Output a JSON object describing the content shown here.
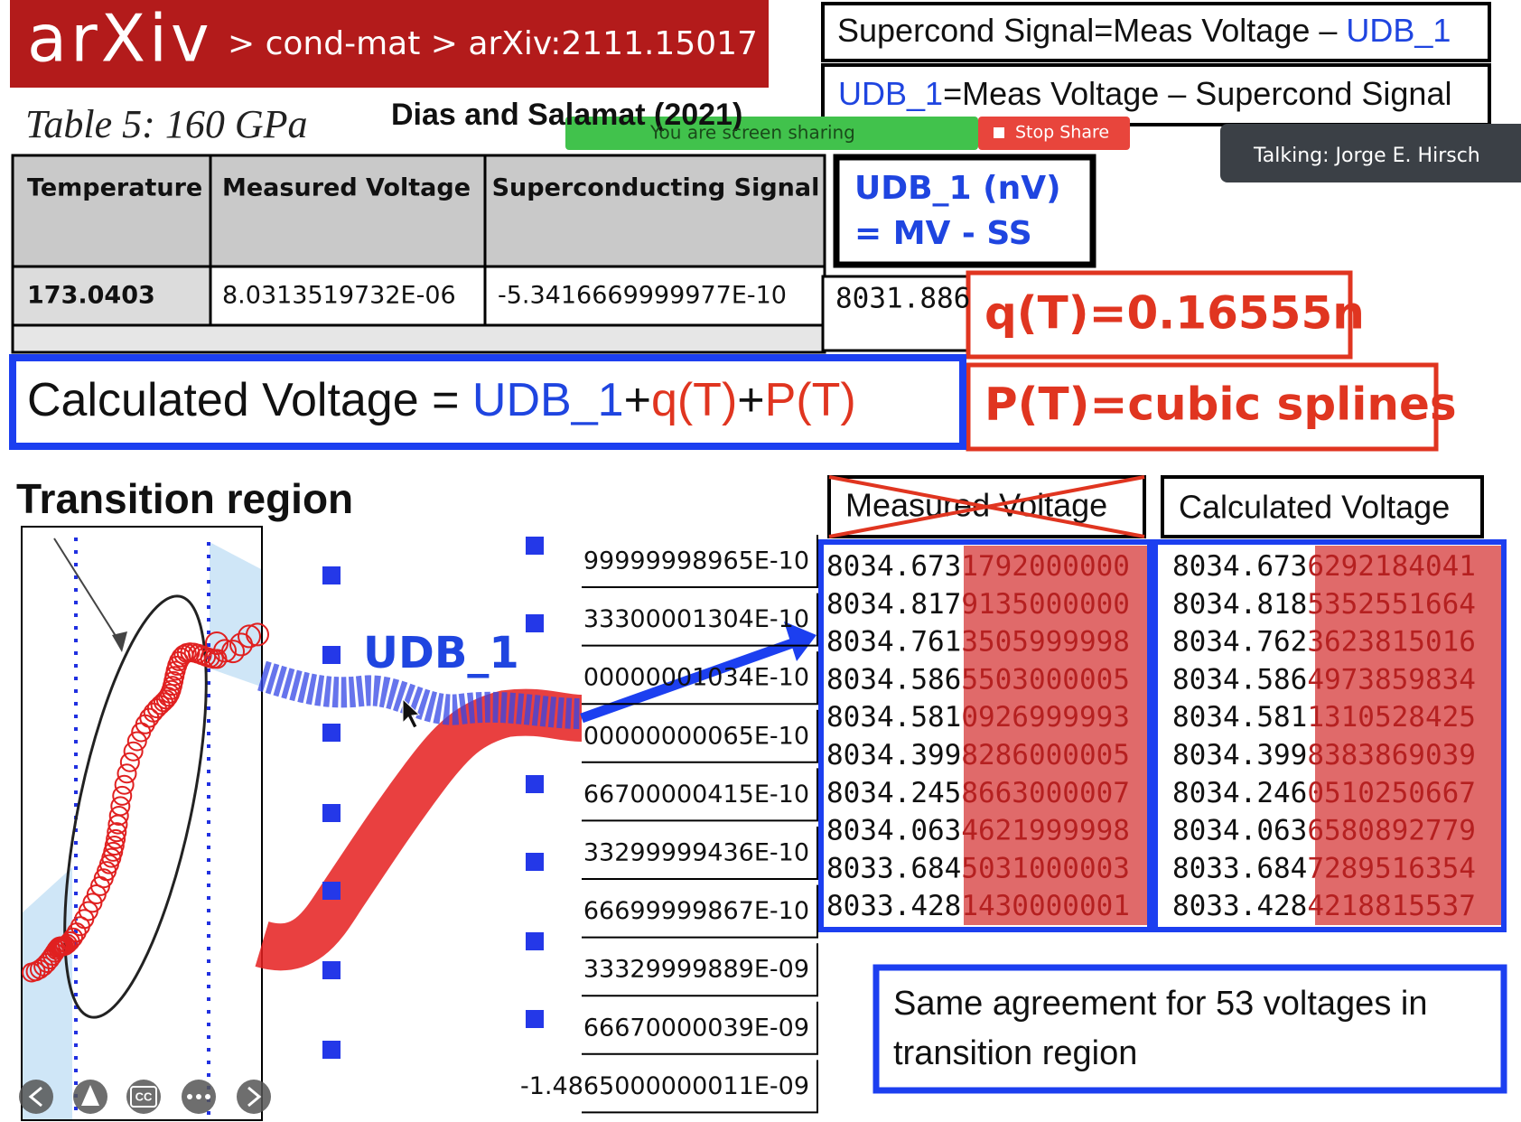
{
  "header": {
    "logo": "arXiv",
    "breadcrumb": "> cond-mat > arXiv:2111.15017"
  },
  "caption": {
    "table": "Table 5: 160 GPa",
    "authors": "Dias and Salamat (2021)"
  },
  "screen_share": {
    "status": "You are screen sharing",
    "stop": "Stop Share"
  },
  "speaker": "Talking: Jorge E. Hirsch",
  "definitions": [
    {
      "text": "Supercond Signal=Meas Voltage – ",
      "term": "UDB_1"
    },
    {
      "term": "UDB_1",
      "text": "=Meas Voltage – Supercond Signal"
    }
  ],
  "table": {
    "headers": [
      "Temperature",
      "Measured Voltage",
      "Superconducting Signal"
    ],
    "rows": [
      [
        "173.0403",
        "8.0313519732E-06",
        "-5.3416669999977E-10"
      ]
    ]
  },
  "udb": {
    "title": "UDB_1 (nV)",
    "formula": "= MV - SS",
    "first_value": "8031.886"
  },
  "q": "q(T)=0.16555n",
  "p": "P(T)=cubic splines",
  "calculated_formula": {
    "label": "Calculated Voltage = ",
    "udb": "UDB_1",
    "plus1": "+",
    "q": "q(T)",
    "plus2": "+",
    "p": "P(T)"
  },
  "section": "Transition region",
  "plot_label": "UDB_1",
  "signal_column": [
    "99999998965E-10",
    "33300001304E-10",
    "00000001034E-10",
    "00000000065E-10",
    "66700000415E-10",
    "33299999436E-10",
    "66699999867E-10",
    "33329999889E-09",
    "66670000039E-09",
    "-1.4865000000011E-09"
  ],
  "measured": {
    "header": "Measured Voltage",
    "rows": [
      [
        "8034.673",
        "1792000000"
      ],
      [
        "8034.817",
        "9135000000"
      ],
      [
        "8034.761",
        "3505999998"
      ],
      [
        "8034.586",
        "5503000005"
      ],
      [
        "8034.581",
        "0926999993"
      ],
      [
        "8034.399",
        "8286000005"
      ],
      [
        "8034.245",
        "8663000007"
      ],
      [
        "8034.063",
        "4621999998"
      ],
      [
        "8033.684",
        "5031000003"
      ],
      [
        "8033.428",
        "1430000001"
      ]
    ]
  },
  "calculated": {
    "header": "Calculated Voltage",
    "rows": [
      [
        "8034.673",
        "6292184041"
      ],
      [
        "8034.818",
        "5352551664"
      ],
      [
        "8034.762",
        "3623815016"
      ],
      [
        "8034.586",
        "4973859834"
      ],
      [
        "8034.581",
        "1310528425"
      ],
      [
        "8034.399",
        "8383869039"
      ],
      [
        "8034.246",
        "0510250667"
      ],
      [
        "8034.063",
        "6580892779"
      ],
      [
        "8033.684",
        "7289516354"
      ],
      [
        "8033.428",
        "4218815537"
      ]
    ]
  },
  "note": [
    "Same agreement for 53 voltages in",
    "transition region"
  ],
  "controls": {
    "captions": "CC"
  }
}
